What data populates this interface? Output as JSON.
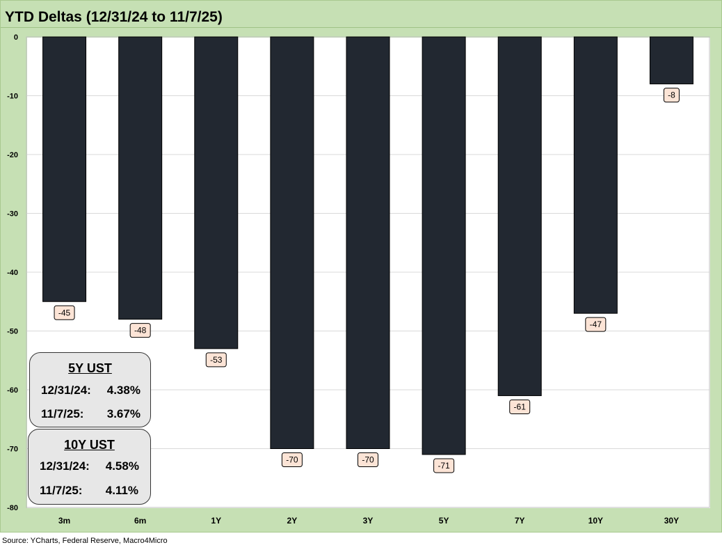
{
  "chart_data": {
    "type": "bar",
    "title": "YTD Deltas (12/31/24 to 11/7/25)",
    "categories": [
      "3m",
      "6m",
      "1Y",
      "2Y",
      "3Y",
      "5Y",
      "7Y",
      "10Y",
      "30Y"
    ],
    "values": [
      -45,
      -48,
      -53,
      -70,
      -70,
      -71,
      -61,
      -47,
      -8
    ],
    "data_labels": [
      "-45",
      "-48",
      "-53",
      "-70",
      "-70",
      "-71",
      "-61",
      "-47",
      "-8"
    ],
    "ylim": [
      -80,
      0
    ],
    "yticks": [
      0,
      -10,
      -20,
      -30,
      -40,
      -50,
      -60,
      -70,
      -80
    ],
    "ytick_labels": [
      "0",
      "-10",
      "-20",
      "-30",
      "-40",
      "-50",
      "-60",
      "-70",
      "-80"
    ],
    "xlabel": "",
    "ylabel": "",
    "grid": true,
    "bar_color": "#222831",
    "label_fill": "#fce4d6",
    "background": "#c6e0b4"
  },
  "boxes": [
    {
      "title": "5Y UST",
      "rows": [
        {
          "date": "12/31/24:",
          "value": "4.38%"
        },
        {
          "date": "11/7/25:",
          "value": "3.67%"
        }
      ]
    },
    {
      "title": "10Y UST",
      "rows": [
        {
          "date": "12/31/24:",
          "value": "4.58%"
        },
        {
          "date": "11/7/25:",
          "value": "4.11%"
        }
      ]
    }
  ],
  "source": "Source: YCharts, Federal Reserve, Macro4Micro"
}
